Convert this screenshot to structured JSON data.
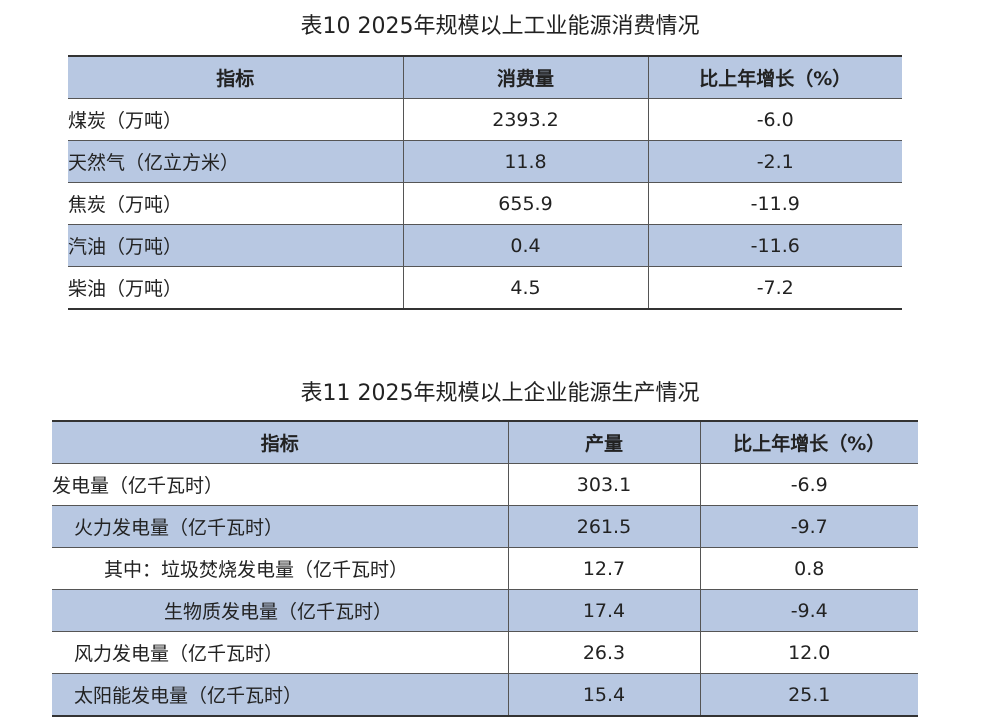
{
  "tables": [
    {
      "title": "表10 2025年规模以上工业能源消费情况",
      "header": [
        "指标",
        "消费量",
        "比上年增长（%）"
      ],
      "rows": [
        [
          "煤炭（万吨）",
          "2393.2",
          "-6.0"
        ],
        [
          "天然气（亿立方米）",
          "11.8",
          "-2.1"
        ],
        [
          "焦炭（万吨）",
          "655.9",
          "-11.9"
        ],
        [
          "汽油（万吨）",
          "0.4",
          "-11.6"
        ],
        [
          "柴油（万吨）",
          "4.5",
          "-7.2"
        ]
      ]
    },
    {
      "title": "表11 2025年规模以上企业能源生产情况",
      "header": [
        "指标",
        "产量",
        "比上年增长（%）"
      ],
      "rows": [
        [
          "发电量（亿千瓦时）",
          "303.1",
          "-6.9"
        ],
        [
          "火力发电量（亿千瓦时）",
          "261.5",
          "-9.7"
        ],
        [
          "其中：垃圾焚烧发电量（亿千瓦时）",
          "12.7",
          "0.8"
        ],
        [
          "生物质发电量（亿千瓦时）",
          "17.4",
          "-9.4"
        ],
        [
          "风力发电量（亿千瓦时）",
          "26.3",
          "12.0"
        ],
        [
          "太阳能发电量（亿千瓦时）",
          "15.4",
          "25.1"
        ]
      ]
    }
  ]
}
